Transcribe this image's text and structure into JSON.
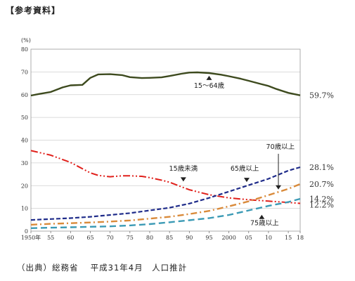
{
  "heading": "【参考資料】",
  "source": "（出典）総務省　 平成31年4月　人口推計",
  "chart_data": {
    "type": "line",
    "ylabel": "(%)",
    "ylim": [
      0,
      80
    ],
    "yticks": [
      0,
      10,
      20,
      30,
      40,
      50,
      60,
      70,
      80
    ],
    "xlim": [
      1950,
      2018
    ],
    "xticks": [
      {
        "x": 1950,
        "label": "1950年"
      },
      {
        "x": 1955,
        "label": "55"
      },
      {
        "x": 1960,
        "label": "60"
      },
      {
        "x": 1965,
        "label": "65"
      },
      {
        "x": 1970,
        "label": "70"
      },
      {
        "x": 1975,
        "label": "75"
      },
      {
        "x": 1980,
        "label": "80"
      },
      {
        "x": 1985,
        "label": "85"
      },
      {
        "x": 1990,
        "label": "90"
      },
      {
        "x": 1995,
        "label": "95"
      },
      {
        "x": 2000,
        "label": "2000"
      },
      {
        "x": 2005,
        "label": "05"
      },
      {
        "x": 2010,
        "label": "10"
      },
      {
        "x": 2015,
        "label": "15"
      },
      {
        "x": 2018,
        "label": "18"
      }
    ],
    "grid": true,
    "series": [
      {
        "name": "15～64歳",
        "color": "#3d4a1e",
        "style": "solid",
        "end_label": "59.7%",
        "x": [
          1950,
          1952,
          1955,
          1958,
          1960,
          1963,
          1965,
          1967,
          1970,
          1973,
          1975,
          1978,
          1980,
          1983,
          1985,
          1988,
          1990,
          1992,
          1995,
          1998,
          2000,
          2003,
          2005,
          2008,
          2010,
          2012,
          2015,
          2018
        ],
        "values": [
          59.6,
          60.3,
          61.2,
          63.2,
          64.1,
          64.3,
          67.4,
          68.9,
          69.0,
          68.6,
          67.7,
          67.3,
          67.4,
          67.6,
          68.2,
          69.2,
          69.7,
          69.8,
          69.5,
          68.8,
          68.1,
          67.0,
          66.1,
          64.7,
          63.8,
          62.5,
          60.8,
          59.7
        ]
      },
      {
        "name": "15歳未満",
        "color": "#e0201b",
        "style": "dashdotdot",
        "end_label": "12.2%",
        "x": [
          1950,
          1955,
          1960,
          1965,
          1967,
          1970,
          1973,
          1975,
          1978,
          1980,
          1983,
          1985,
          1988,
          1990,
          1995,
          2000,
          2005,
          2010,
          2015,
          2018
        ],
        "values": [
          35.4,
          33.4,
          30.2,
          25.6,
          24.5,
          23.9,
          24.3,
          24.3,
          24.1,
          23.5,
          22.4,
          21.5,
          19.5,
          18.2,
          16.0,
          14.6,
          13.8,
          13.2,
          12.6,
          12.2
        ]
      },
      {
        "name": "65歳以上",
        "color": "#1f2c8a",
        "style": "dashed",
        "end_label": "28.1%",
        "x": [
          1950,
          1955,
          1960,
          1965,
          1970,
          1975,
          1980,
          1985,
          1990,
          1995,
          2000,
          2005,
          2010,
          2015,
          2018
        ],
        "values": [
          4.9,
          5.3,
          5.7,
          6.3,
          7.1,
          7.9,
          9.1,
          10.3,
          12.1,
          14.6,
          17.4,
          20.2,
          23.0,
          26.6,
          28.1
        ]
      },
      {
        "name": "70歳以上",
        "color": "#d98a3a",
        "style": "dashdot",
        "end_label": "20.7%",
        "x": [
          1950,
          1955,
          1960,
          1965,
          1970,
          1975,
          1980,
          1985,
          1990,
          1995,
          2000,
          2005,
          2010,
          2015,
          2018
        ],
        "values": [
          2.8,
          3.2,
          3.5,
          3.8,
          4.2,
          4.7,
          5.5,
          6.3,
          7.5,
          8.9,
          10.9,
          13.1,
          15.8,
          18.6,
          20.7
        ]
      },
      {
        "name": "75歳以上",
        "color": "#3b9ab5",
        "style": "longdash",
        "end_label": "14.2%",
        "x": [
          1950,
          1955,
          1960,
          1965,
          1970,
          1975,
          1980,
          1985,
          1990,
          1995,
          2000,
          2005,
          2010,
          2015,
          2018
        ],
        "values": [
          1.3,
          1.5,
          1.7,
          1.9,
          2.1,
          2.5,
          3.1,
          3.9,
          4.8,
          5.7,
          7.1,
          9.1,
          11.1,
          12.8,
          14.2
        ]
      }
    ],
    "annotations": [
      {
        "text": "15～64歳",
        "series": "15～64歳"
      },
      {
        "text": "15歳未満",
        "series": "15歳未満"
      },
      {
        "text": "65歳以上",
        "series": "65歳以上"
      },
      {
        "text": "70歳以上",
        "series": "70歳以上"
      },
      {
        "text": "75歳以上",
        "series": "75歳以上"
      }
    ]
  }
}
